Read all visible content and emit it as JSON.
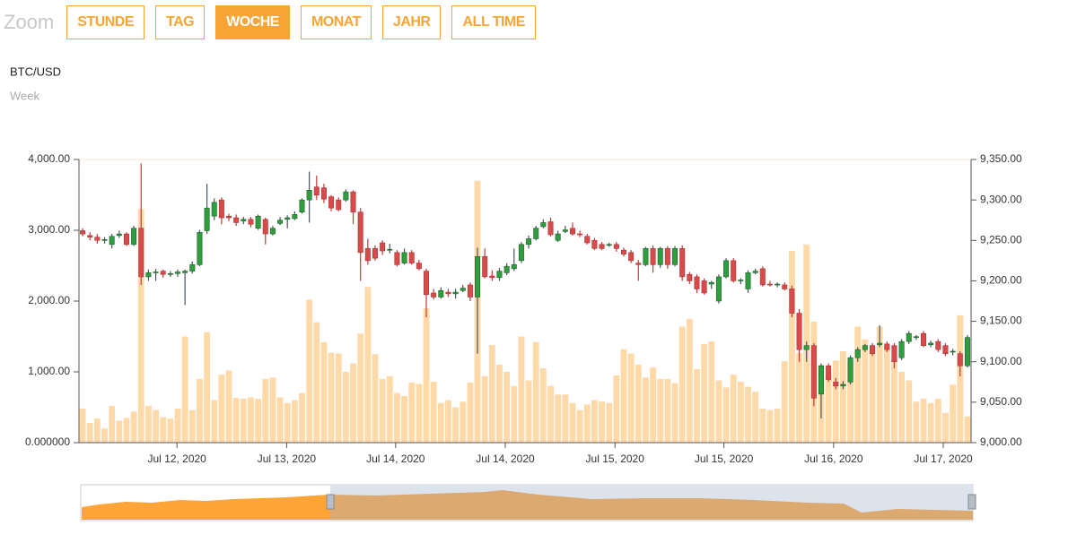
{
  "zoom": {
    "label": "Zoom",
    "buttons": [
      "STUNDE",
      "TAG",
      "WOCHE",
      "MONAT",
      "JAHR",
      "ALL TIME"
    ],
    "active": 2
  },
  "chart_data": {
    "type": "candlestick",
    "title": "BTC/USD",
    "subtitle": "Week",
    "up_color": "#2f9e3f",
    "down_color": "#d94a4a",
    "volume_color": "#ffd9a8",
    "xlim": [
      0,
      122
    ],
    "xticks": [
      {
        "value": 13.4,
        "label": "Jul 12, 2020"
      },
      {
        "value": 28.4,
        "label": "Jul 13, 2020"
      },
      {
        "value": 43.3,
        "label": "Jul 14, 2020"
      },
      {
        "value": 58.3,
        "label": "Jul 14, 2020"
      },
      {
        "value": 73.3,
        "label": "Jul 15, 2020"
      },
      {
        "value": 88.2,
        "label": "Jul 15, 2020"
      },
      {
        "value": 103.2,
        "label": "Jul 16, 2020"
      },
      {
        "value": 118.2,
        "label": "Jul 17, 2020"
      }
    ],
    "ylim": [
      0,
      4000
    ],
    "yticks": [
      {
        "value": 0,
        "label": "0.000000"
      },
      {
        "value": 1000,
        "label": "1,000.00"
      },
      {
        "value": 2000,
        "label": "2,000.00"
      },
      {
        "value": 3000,
        "label": "3,000.00"
      },
      {
        "value": 4000,
        "label": "4,000.00"
      }
    ],
    "y2lim": [
      9000,
      9350
    ],
    "y2ticks": [
      {
        "value": 9000,
        "label": "9,000.00"
      },
      {
        "value": 9050,
        "label": "9,050.00"
      },
      {
        "value": 9100,
        "label": "9,100.00"
      },
      {
        "value": 9150,
        "label": "9,150.00"
      },
      {
        "value": 9200,
        "label": "9,200.00"
      },
      {
        "value": 9250,
        "label": "9,250.00"
      },
      {
        "value": 9300,
        "label": "9,300.00"
      },
      {
        "value": 9350,
        "label": "9,350.00"
      }
    ],
    "volume": [
      480,
      280,
      340,
      200,
      520,
      310,
      350,
      440,
      3300,
      520,
      460,
      360,
      340,
      480,
      1500,
      460,
      900,
      1560,
      600,
      960,
      1020,
      630,
      620,
      640,
      620,
      900,
      920,
      640,
      560,
      600,
      700,
      2020,
      1700,
      1420,
      1270,
      1260,
      1000,
      1120,
      1540,
      2200,
      1250,
      900,
      940,
      700,
      660,
      850,
      830,
      1900,
      860,
      560,
      600,
      500,
      580,
      850,
      3700,
      940,
      1380,
      1100,
      1000,
      800,
      1500,
      880,
      1420,
      1050,
      800,
      680,
      680,
      560,
      460,
      540,
      600,
      580,
      560,
      950,
      1320,
      1260,
      1100,
      920,
      1060,
      900,
      900,
      840,
      1640,
      1750,
      1040,
      1390,
      1430,
      880,
      780,
      960,
      860,
      790,
      720,
      480,
      460,
      480,
      1150,
      2710,
      1270,
      2800,
      1710,
      1100,
      940,
      1160,
      1290,
      1140,
      1640,
      1460,
      1350,
      1640,
      1370,
      1160,
      1000,
      880,
      580,
      620,
      560,
      620,
      420,
      820,
      1800,
      370
    ],
    "ohlc": [
      [
        9262,
        9265,
        9255,
        9258
      ],
      [
        9256,
        9260,
        9250,
        9254
      ],
      [
        9254,
        9258,
        9246,
        9250
      ],
      [
        9250,
        9254,
        9246,
        9251
      ],
      [
        9245,
        9258,
        9240,
        9255
      ],
      [
        9256,
        9262,
        9253,
        9258
      ],
      [
        9258,
        9260,
        9243,
        9245
      ],
      [
        9245,
        9268,
        9243,
        9265
      ],
      [
        9265,
        9345,
        9195,
        9205
      ],
      [
        9205,
        9214,
        9200,
        9210
      ],
      [
        9210,
        9215,
        9200,
        9211
      ],
      [
        9212,
        9214,
        9204,
        9208
      ],
      [
        9208,
        9212,
        9205,
        9209
      ],
      [
        9209,
        9214,
        9205,
        9211
      ],
      [
        9210,
        9214,
        9170,
        9212
      ],
      [
        9212,
        9224,
        9209,
        9220
      ],
      [
        9220,
        9263,
        9218,
        9260
      ],
      [
        9262,
        9320,
        9258,
        9290
      ],
      [
        9280,
        9302,
        9275,
        9297
      ],
      [
        9300,
        9303,
        9270,
        9278
      ],
      [
        9280,
        9283,
        9274,
        9278
      ],
      [
        9278,
        9282,
        9268,
        9272
      ],
      [
        9274,
        9279,
        9270,
        9276
      ],
      [
        9276,
        9279,
        9266,
        9270
      ],
      [
        9265,
        9282,
        9263,
        9280
      ],
      [
        9276,
        9278,
        9245,
        9258
      ],
      [
        9258,
        9268,
        9256,
        9265
      ],
      [
        9271,
        9279,
        9269,
        9275
      ],
      [
        9276,
        9281,
        9265,
        9278
      ],
      [
        9277,
        9286,
        9275,
        9282
      ],
      [
        9285,
        9302,
        9283,
        9300
      ],
      [
        9300,
        9335,
        9272,
        9312
      ],
      [
        9316,
        9330,
        9300,
        9306
      ],
      [
        9315,
        9320,
        9296,
        9301
      ],
      [
        9304,
        9306,
        9286,
        9290
      ],
      [
        9300,
        9303,
        9286,
        9288
      ],
      [
        9300,
        9313,
        9298,
        9310
      ],
      [
        9310,
        9312,
        9270,
        9285
      ],
      [
        9285,
        9290,
        9200,
        9235
      ],
      [
        9240,
        9252,
        9220,
        9225
      ],
      [
        9240,
        9244,
        9225,
        9228
      ],
      [
        9247,
        9250,
        9232,
        9237
      ],
      [
        9238,
        9246,
        9234,
        9239
      ],
      [
        9235,
        9238,
        9218,
        9220
      ],
      [
        9222,
        9240,
        9220,
        9235
      ],
      [
        9235,
        9238,
        9220,
        9222
      ],
      [
        9222,
        9226,
        9213,
        9215
      ],
      [
        9212,
        9215,
        9155,
        9183
      ],
      [
        9185,
        9190,
        9177,
        9180
      ],
      [
        9180,
        9192,
        9178,
        9188
      ],
      [
        9186,
        9190,
        9180,
        9184
      ],
      [
        9184,
        9190,
        9178,
        9186
      ],
      [
        9188,
        9195,
        9186,
        9191
      ],
      [
        9195,
        9198,
        9175,
        9180
      ],
      [
        9180,
        9241,
        9110,
        9230
      ],
      [
        9230,
        9240,
        9203,
        9205
      ],
      [
        9206,
        9213,
        9200,
        9204
      ],
      [
        9204,
        9216,
        9200,
        9212
      ],
      [
        9210,
        9222,
        9207,
        9218
      ],
      [
        9215,
        9240,
        9212,
        9220
      ],
      [
        9225,
        9248,
        9222,
        9245
      ],
      [
        9245,
        9256,
        9240,
        9252
      ],
      [
        9252,
        9268,
        9250,
        9265
      ],
      [
        9267,
        9276,
        9265,
        9272
      ],
      [
        9273,
        9278,
        9255,
        9257
      ],
      [
        9250,
        9262,
        9248,
        9258
      ],
      [
        9261,
        9268,
        9259,
        9263
      ],
      [
        9265,
        9272,
        9256,
        9258
      ],
      [
        9258,
        9262,
        9254,
        9257
      ],
      [
        9255,
        9258,
        9245,
        9247
      ],
      [
        9250,
        9253,
        9238,
        9240
      ],
      [
        9245,
        9248,
        9238,
        9240
      ],
      [
        9244,
        9247,
        9242,
        9245
      ],
      [
        9245,
        9248,
        9236,
        9240
      ],
      [
        9238,
        9241,
        9230,
        9233
      ],
      [
        9235,
        9238,
        9222,
        9225
      ],
      [
        9222,
        9226,
        9200,
        9220
      ],
      [
        9220,
        9242,
        9218,
        9240
      ],
      [
        9240,
        9244,
        9210,
        9220
      ],
      [
        9220,
        9242,
        9216,
        9240
      ],
      [
        9240,
        9243,
        9215,
        9220
      ],
      [
        9220,
        9243,
        9218,
        9240
      ],
      [
        9240,
        9244,
        9200,
        9205
      ],
      [
        9208,
        9211,
        9196,
        9200
      ],
      [
        9205,
        9208,
        9185,
        9190
      ],
      [
        9200,
        9203,
        9183,
        9185
      ],
      [
        9196,
        9200,
        9190,
        9198
      ],
      [
        9175,
        9208,
        9172,
        9205
      ],
      [
        9205,
        9228,
        9203,
        9225
      ],
      [
        9225,
        9228,
        9198,
        9200
      ],
      [
        9200,
        9203,
        9196,
        9201
      ],
      [
        9190,
        9213,
        9185,
        9210
      ],
      [
        9210,
        9215,
        9208,
        9212
      ],
      [
        9215,
        9218,
        9193,
        9195
      ],
      [
        9196,
        9200,
        9193,
        9195
      ],
      [
        9195,
        9198,
        9192,
        9196
      ],
      [
        9195,
        9198,
        9188,
        9190
      ],
      [
        9190,
        9194,
        9155,
        9160
      ],
      [
        9160,
        9165,
        9100,
        9115
      ],
      [
        9115,
        9125,
        9100,
        9120
      ],
      [
        9120,
        9123,
        9045,
        9055
      ],
      [
        9060,
        9098,
        9030,
        9095
      ],
      [
        9095,
        9098,
        9075,
        9078
      ],
      [
        9075,
        9080,
        9066,
        9070
      ],
      [
        9070,
        9076,
        9066,
        9072
      ],
      [
        9075,
        9108,
        9072,
        9105
      ],
      [
        9105,
        9118,
        9100,
        9115
      ],
      [
        9115,
        9122,
        9112,
        9120
      ],
      [
        9120,
        9123,
        9107,
        9110
      ],
      [
        9121,
        9145,
        9118,
        9123
      ],
      [
        9122,
        9125,
        9112,
        9115
      ],
      [
        9120,
        9123,
        9092,
        9100
      ],
      [
        9105,
        9128,
        9102,
        9125
      ],
      [
        9125,
        9138,
        9122,
        9135
      ],
      [
        9130,
        9133,
        9127,
        9131
      ],
      [
        9135,
        9138,
        9118,
        9120
      ],
      [
        9121,
        9126,
        9118,
        9123
      ],
      [
        9125,
        9128,
        9112,
        9115
      ],
      [
        9120,
        9123,
        9107,
        9110
      ],
      [
        9112,
        9116,
        9108,
        9113
      ],
      [
        9110,
        9113,
        9082,
        9095
      ],
      [
        9095,
        9133,
        9093,
        9130
      ]
    ]
  }
}
